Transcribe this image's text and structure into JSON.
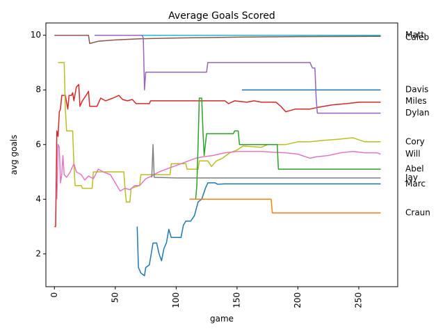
{
  "chart_data": {
    "type": "line",
    "title": "Average Goals Scored",
    "xlabel": "game",
    "ylabel": "avg goals",
    "xlim": [
      -7,
      282
    ],
    "ylim": [
      0.8,
      10.45
    ],
    "x_ticks": [
      0,
      50,
      100,
      150,
      200,
      250
    ],
    "y_ticks": [
      2,
      4,
      6,
      8,
      10
    ],
    "grid": false,
    "legend": "labels to the right of line ends",
    "series": [
      {
        "name": "Matt",
        "color": "#17becf",
        "points": [
          [
            33,
            10
          ],
          [
            60,
            10
          ],
          [
            100,
            10
          ],
          [
            150,
            10
          ],
          [
            200,
            10
          ],
          [
            268,
            10
          ]
        ],
        "label_y": 10.0
      },
      {
        "name": "Caleb",
        "color": "#8c564b",
        "points": [
          [
            0,
            10
          ],
          [
            28,
            10
          ],
          [
            29,
            9.7
          ],
          [
            36,
            9.78
          ],
          [
            50,
            9.83
          ],
          [
            70,
            9.87
          ],
          [
            100,
            9.9
          ],
          [
            150,
            9.93
          ],
          [
            200,
            9.95
          ],
          [
            268,
            9.96
          ]
        ],
        "label_y": 9.92
      },
      {
        "name": "Davis",
        "color": "#1f77b4",
        "points": [
          [
            154,
            8
          ],
          [
            268,
            8
          ]
        ],
        "label_y": 8.0
      },
      {
        "name": "Miles",
        "color": "#d62728",
        "points": [
          [
            0,
            3
          ],
          [
            1,
            3
          ],
          [
            2,
            6.5
          ],
          [
            3,
            6.3
          ],
          [
            4,
            7.2
          ],
          [
            5,
            7.3
          ],
          [
            6,
            7.8
          ],
          [
            9,
            7.8
          ],
          [
            11,
            7.3
          ],
          [
            12,
            7.8
          ],
          [
            14,
            7.8
          ],
          [
            15,
            7.9
          ],
          [
            16,
            7.6
          ],
          [
            18,
            8.1
          ],
          [
            20,
            8.2
          ],
          [
            21,
            7.4
          ],
          [
            23,
            7.6
          ],
          [
            26,
            7.8
          ],
          [
            28,
            7.95
          ],
          [
            29,
            7.4
          ],
          [
            35,
            7.4
          ],
          [
            38,
            7.7
          ],
          [
            42,
            7.6
          ],
          [
            48,
            7.7
          ],
          [
            53,
            7.8
          ],
          [
            56,
            7.65
          ],
          [
            60,
            7.6
          ],
          [
            64,
            7.65
          ],
          [
            67,
            7.5
          ],
          [
            78,
            7.5
          ],
          [
            79,
            7.6
          ],
          [
            90,
            7.6
          ],
          [
            100,
            7.6
          ],
          [
            120,
            7.6
          ],
          [
            140,
            7.6
          ],
          [
            143,
            7.5
          ],
          [
            148,
            7.6
          ],
          [
            158,
            7.55
          ],
          [
            164,
            7.6
          ],
          [
            170,
            7.55
          ],
          [
            182,
            7.55
          ],
          [
            186,
            7.4
          ],
          [
            190,
            7.2
          ],
          [
            194,
            7.25
          ],
          [
            198,
            7.3
          ],
          [
            210,
            7.3
          ],
          [
            215,
            7.35
          ],
          [
            228,
            7.45
          ],
          [
            240,
            7.5
          ],
          [
            250,
            7.55
          ],
          [
            268,
            7.55
          ]
        ],
        "label_y": 7.58
      },
      {
        "name": "Dylan",
        "color": "#9467bd",
        "points": [
          [
            33,
            10
          ],
          [
            72,
            10
          ],
          [
            73,
            9.9
          ],
          [
            74,
            8.0
          ],
          [
            75,
            8.65
          ],
          [
            80,
            8.65
          ],
          [
            100,
            8.65
          ],
          [
            125,
            8.65
          ],
          [
            126,
            9.0
          ],
          [
            150,
            9.0
          ],
          [
            180,
            9.0
          ],
          [
            210,
            9.0
          ],
          [
            212,
            8.8
          ],
          [
            214,
            8.8
          ],
          [
            215,
            7.7
          ],
          [
            216,
            7.15
          ],
          [
            240,
            7.15
          ],
          [
            268,
            7.15
          ]
        ],
        "label_y": 7.15
      },
      {
        "name": "Cory",
        "color": "#bcbd22",
        "points": [
          [
            3,
            9
          ],
          [
            8,
            9
          ],
          [
            9,
            7.3
          ],
          [
            10,
            6.5
          ],
          [
            15,
            6.5
          ],
          [
            16,
            5.3
          ],
          [
            17,
            4.5
          ],
          [
            22,
            4.5
          ],
          [
            23,
            4.4
          ],
          [
            31,
            4.4
          ],
          [
            32,
            5.0
          ],
          [
            40,
            5.0
          ],
          [
            57,
            5.0
          ],
          [
            58,
            4.4
          ],
          [
            59,
            3.9
          ],
          [
            62,
            3.9
          ],
          [
            63,
            4.4
          ],
          [
            70,
            4.5
          ],
          [
            71,
            4.9
          ],
          [
            80,
            4.9
          ],
          [
            95,
            4.9
          ],
          [
            96,
            5.3
          ],
          [
            108,
            5.3
          ],
          [
            109,
            5.1
          ],
          [
            118,
            5.1
          ],
          [
            119,
            5.4
          ],
          [
            126,
            5.4
          ],
          [
            129,
            5.2
          ],
          [
            133,
            5.4
          ],
          [
            138,
            5.5
          ],
          [
            144,
            5.7
          ],
          [
            150,
            5.8
          ],
          [
            155,
            5.95
          ],
          [
            170,
            5.9
          ],
          [
            175,
            6.0
          ],
          [
            190,
            6.0
          ],
          [
            200,
            6.1
          ],
          [
            210,
            6.1
          ],
          [
            220,
            6.15
          ],
          [
            235,
            6.2
          ],
          [
            245,
            6.25
          ],
          [
            255,
            6.1
          ],
          [
            268,
            6.1
          ]
        ],
        "label_y": 6.1
      },
      {
        "name": "Will",
        "color": "#e377c2",
        "points": [
          [
            2,
            4.0
          ],
          [
            3,
            6.0
          ],
          [
            4,
            5.9
          ],
          [
            5,
            4.6
          ],
          [
            6,
            4.9
          ],
          [
            7,
            5.6
          ],
          [
            8,
            4.9
          ],
          [
            10,
            4.8
          ],
          [
            13,
            5.0
          ],
          [
            16,
            5.3
          ],
          [
            18,
            5.0
          ],
          [
            22,
            4.9
          ],
          [
            25,
            4.7
          ],
          [
            28,
            4.85
          ],
          [
            32,
            4.75
          ],
          [
            36,
            5.1
          ],
          [
            40,
            5.0
          ],
          [
            46,
            4.9
          ],
          [
            50,
            4.6
          ],
          [
            54,
            4.3
          ],
          [
            58,
            4.4
          ],
          [
            62,
            4.35
          ],
          [
            66,
            4.5
          ],
          [
            70,
            4.5
          ],
          [
            75,
            4.75
          ],
          [
            80,
            4.85
          ],
          [
            86,
            5.0
          ],
          [
            92,
            5.1
          ],
          [
            98,
            5.2
          ],
          [
            104,
            5.3
          ],
          [
            110,
            5.4
          ],
          [
            116,
            5.5
          ],
          [
            122,
            5.55
          ],
          [
            130,
            5.6
          ],
          [
            140,
            5.7
          ],
          [
            150,
            5.75
          ],
          [
            160,
            5.75
          ],
          [
            170,
            5.75
          ],
          [
            180,
            5.72
          ],
          [
            190,
            5.7
          ],
          [
            200,
            5.65
          ],
          [
            210,
            5.5
          ],
          [
            215,
            5.55
          ],
          [
            225,
            5.6
          ],
          [
            235,
            5.7
          ],
          [
            245,
            5.75
          ],
          [
            255,
            5.7
          ],
          [
            265,
            5.7
          ],
          [
            268,
            5.65
          ]
        ],
        "label_y": 5.65
      },
      {
        "name": "Abel",
        "color": "#2ca02c",
        "points": [
          [
            116,
            4.0
          ],
          [
            117,
            4.5
          ],
          [
            118,
            6.0
          ],
          [
            119,
            7.7
          ],
          [
            121,
            7.7
          ],
          [
            122,
            6.5
          ],
          [
            123,
            5.6
          ],
          [
            125,
            6.4
          ],
          [
            130,
            6.4
          ],
          [
            147,
            6.4
          ],
          [
            148,
            6.5
          ],
          [
            151,
            6.5
          ],
          [
            152,
            6.0
          ],
          [
            175,
            6.0
          ],
          [
            183,
            6.0
          ],
          [
            184,
            5.1
          ],
          [
            200,
            5.1
          ],
          [
            268,
            5.1
          ]
        ],
        "label_y": 5.1
      },
      {
        "name": "Jay",
        "color": "#7f7f7f",
        "points": [
          [
            80,
            4.8
          ],
          [
            81,
            6.0
          ],
          [
            82,
            4.8
          ],
          [
            100,
            4.78
          ],
          [
            150,
            4.78
          ],
          [
            200,
            4.78
          ],
          [
            268,
            4.78
          ]
        ],
        "label_y": 4.78
      },
      {
        "name": "Marc",
        "color": "#1f77b4",
        "points": [
          [
            68,
            3.0
          ],
          [
            69,
            1.5
          ],
          [
            71,
            1.3
          ],
          [
            74,
            1.2
          ],
          [
            75,
            1.5
          ],
          [
            78,
            1.6
          ],
          [
            81,
            2.4
          ],
          [
            84,
            2.4
          ],
          [
            86,
            2.0
          ],
          [
            88,
            1.75
          ],
          [
            90,
            2.2
          ],
          [
            92,
            2.4
          ],
          [
            94,
            2.9
          ],
          [
            96,
            2.6
          ],
          [
            98,
            2.6
          ],
          [
            100,
            2.6
          ],
          [
            104,
            2.6
          ],
          [
            106,
            3.05
          ],
          [
            108,
            3.2
          ],
          [
            112,
            3.2
          ],
          [
            115,
            3.4
          ],
          [
            118,
            3.9
          ],
          [
            121,
            4.0
          ],
          [
            124,
            4.4
          ],
          [
            126,
            4.6
          ],
          [
            128,
            4.6
          ],
          [
            132,
            4.6
          ],
          [
            134,
            4.55
          ],
          [
            140,
            4.56
          ],
          [
            160,
            4.56
          ],
          [
            200,
            4.56
          ],
          [
            268,
            4.56
          ]
        ],
        "label_y": 4.55
      },
      {
        "name": "Craun",
        "color": "#ff7f0e",
        "points": [
          [
            111,
            4.0
          ],
          [
            178,
            4.0
          ],
          [
            179,
            3.5
          ],
          [
            200,
            3.5
          ],
          [
            230,
            3.5
          ],
          [
            268,
            3.5
          ]
        ],
        "label_y": 3.5
      }
    ]
  }
}
